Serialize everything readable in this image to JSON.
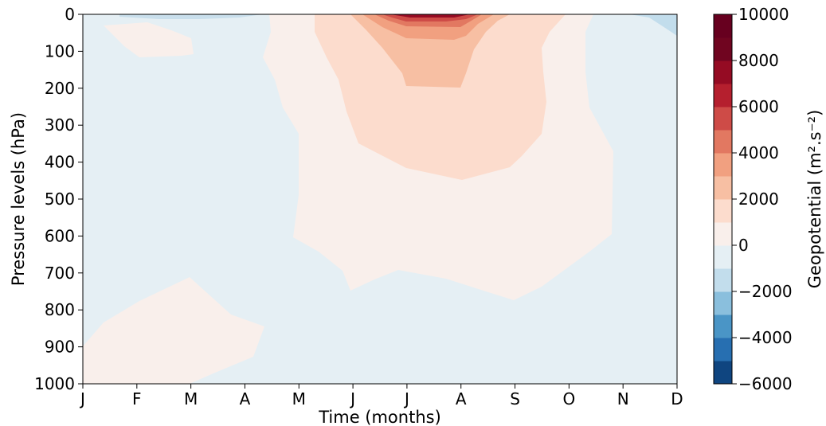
{
  "chart_data": {
    "type": "contour",
    "xlabel": "Time (months)",
    "ylabel": "Pressure levels (hPa)",
    "x_ticks": [
      "J",
      "F",
      "M",
      "A",
      "M",
      "J",
      "J",
      "A",
      "S",
      "O",
      "N",
      "D"
    ],
    "y_ticks": [
      "0",
      "100",
      "200",
      "300",
      "400",
      "500",
      "600",
      "700",
      "800",
      "900",
      "1000"
    ],
    "ylim": [
      1000,
      0
    ],
    "colorbar": {
      "label": "Geopotential (m².s⁻²)",
      "ticks": [
        "10000",
        "8000",
        "6000",
        "4000",
        "2000",
        "0",
        "−2000",
        "−4000",
        "−6000"
      ],
      "levels": [
        -6000,
        -5000,
        -4000,
        -3000,
        -2000,
        -1000,
        0,
        1000,
        2000,
        3000,
        4000,
        5000,
        6000,
        7000,
        8000,
        9000,
        10000
      ],
      "colors": [
        "#0f4580",
        "#276fb1",
        "#4a95c6",
        "#8abfdd",
        "#c2ddec",
        "#e5eff4",
        "#f9efeb",
        "#fcdccd",
        "#f7bfa3",
        "#f1a080",
        "#e27861",
        "#ce4b47",
        "#b51f2e",
        "#950b23",
        "#700520",
        "#67001f"
      ]
    },
    "regions": [
      {
        "level": "-1000 to 0",
        "x": [
          0,
          11
        ],
        "p": [
          0,
          1000
        ]
      },
      {
        "level": "0 to 1000",
        "x": [
          3.4,
          10.3
        ],
        "p": [
          0,
          780
        ]
      },
      {
        "level": "0 to 1000",
        "x": [
          0,
          3.4
        ],
        "p": [
          710,
          1000
        ]
      },
      {
        "level": "0 to 1000",
        "x": [
          0.4,
          2.1
        ],
        "p": [
          25,
          110
        ]
      },
      {
        "level": "1000 to 2000",
        "x": [
          4,
          9.2
        ],
        "p": [
          0,
          410
        ]
      },
      {
        "level": "2000 to 3000",
        "x": [
          5.6,
          7.8
        ],
        "p": [
          0,
          160
        ]
      },
      {
        "level": "3000 to 10000",
        "x": [
          5.5,
          7.6
        ],
        "p": [
          0,
          40
        ]
      },
      {
        "level": "-2000 to -1000",
        "x": [
          10.7,
          11
        ],
        "p": [
          0,
          50
        ]
      }
    ]
  }
}
